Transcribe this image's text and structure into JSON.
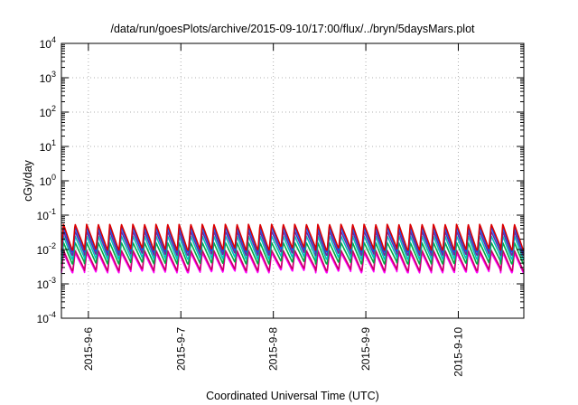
{
  "chart_data": {
    "type": "line",
    "title": "/data/run/goesPlots/archive/2015-09-10/17:00/flux/../bryn/5daysMars.plot",
    "xlabel": "Coordinated Universal Time (UTC)",
    "ylabel": "cGy/day",
    "y_scale": "log",
    "ylim": [
      0.0001,
      10000
    ],
    "y_ticks": [
      {
        "value": 0.0001,
        "base": "10",
        "exp": "-4"
      },
      {
        "value": 0.001,
        "base": "10",
        "exp": "-3"
      },
      {
        "value": 0.01,
        "base": "10",
        "exp": "-2"
      },
      {
        "value": 0.1,
        "base": "10",
        "exp": "-1"
      },
      {
        "value": 1,
        "base": "10",
        "exp": "0"
      },
      {
        "value": 10,
        "base": "10",
        "exp": "1"
      },
      {
        "value": 100,
        "base": "10",
        "exp": "2"
      },
      {
        "value": 1000,
        "base": "10",
        "exp": "3"
      },
      {
        "value": 10000,
        "base": "10",
        "exp": "4"
      }
    ],
    "xlim": [
      "2015-09-05 17:00",
      "2015-09-10 17:00"
    ],
    "x_ticks": [
      "2015-9-6",
      "2015-9-7",
      "2015-9-8",
      "2015-9-9",
      "2015-9-10"
    ],
    "grid": true,
    "series": [
      {
        "color": "#ff00ff",
        "low": 0.0021,
        "high": 0.008
      },
      {
        "color": "#cc0066",
        "low": 0.0024,
        "high": 0.0095
      },
      {
        "color": "#00aa44",
        "low": 0.0038,
        "high": 0.016
      },
      {
        "color": "#00c0c0",
        "low": 0.0052,
        "high": 0.025
      },
      {
        "color": "#6a2aa0",
        "low": 0.0068,
        "high": 0.034
      },
      {
        "color": "#0055ff",
        "low": 0.0085,
        "high": 0.045
      },
      {
        "color": "#dd0000",
        "low": 0.0095,
        "high": 0.055
      }
    ],
    "oscillation": {
      "cycles_per_day": 8.0,
      "rise_fraction": 0.18
    }
  }
}
